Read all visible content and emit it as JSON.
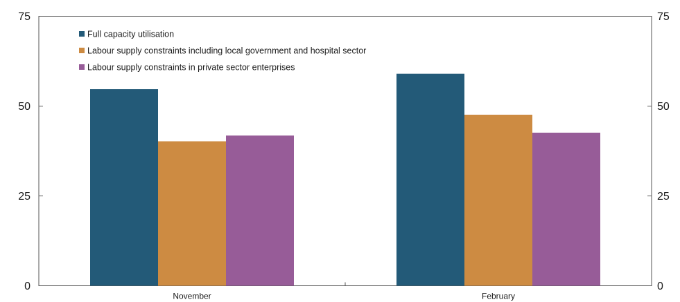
{
  "chart_data": {
    "type": "bar",
    "categories": [
      "November",
      "February"
    ],
    "series": [
      {
        "name": "Full capacity utilisation",
        "values": [
          54.7,
          59.0
        ],
        "color": "#235a78"
      },
      {
        "name": "Labour supply constraints including local government and hospital sector",
        "values": [
          40.2,
          47.6
        ],
        "color": "#cd8b42"
      },
      {
        "name": "Labour supply constraints in private sector enterprises",
        "values": [
          41.8,
          42.6
        ],
        "color": "#975c98"
      }
    ],
    "ylim": [
      0,
      75
    ],
    "yticks": [
      0,
      25,
      50,
      75
    ],
    "ytick_labels_left": [
      "0",
      "25",
      "50",
      "75"
    ],
    "ytick_labels_right": [
      "0",
      "25",
      "50",
      "75"
    ],
    "grid": false,
    "legend_position": "top-left"
  }
}
